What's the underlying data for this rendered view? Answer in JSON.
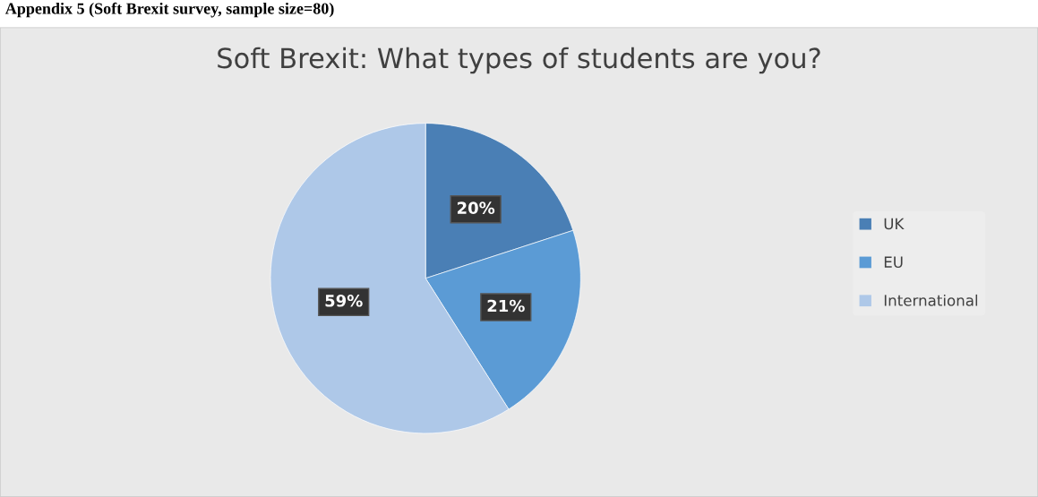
{
  "chart_data": {
    "type": "pie",
    "title": "Soft Brexit: What types of students are you?",
    "annotations": [
      "Appendix 5 (Soft Brexit survey, sample size=80)"
    ],
    "categories": [
      "UK",
      "EU",
      "International"
    ],
    "values": [
      20,
      21,
      59
    ],
    "colors": [
      "#4a7fb5",
      "#5b9bd5",
      "#aec8e8"
    ],
    "value_labels": [
      "20%",
      "21%",
      "59%"
    ],
    "legend": "right"
  }
}
